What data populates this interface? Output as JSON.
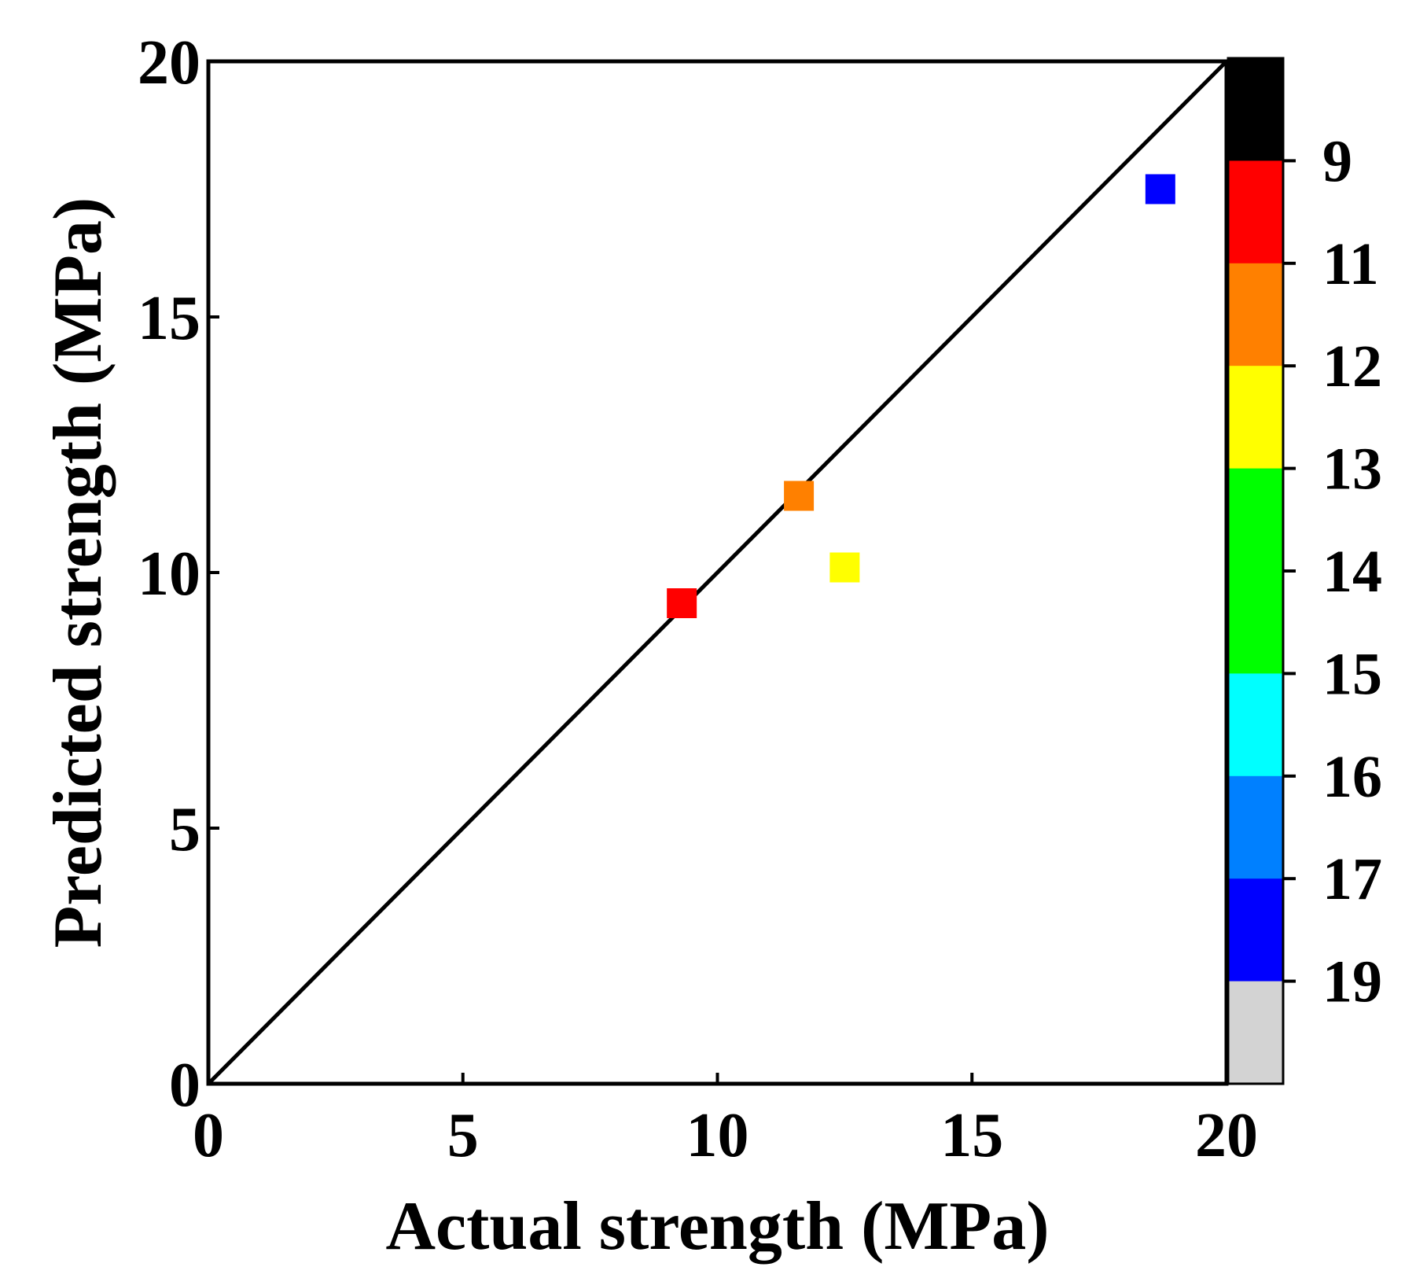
{
  "chart_data": {
    "type": "scatter",
    "title": "",
    "xlabel": "Actual strength (MPa)",
    "ylabel": "Predicted strength (MPa)",
    "xlim": [
      0,
      20
    ],
    "ylim": [
      0,
      20
    ],
    "xticks": [
      0,
      5,
      10,
      15,
      20
    ],
    "yticks": [
      0,
      5,
      10,
      15,
      20
    ],
    "xtick_labels": [
      "0",
      "5",
      "10",
      "15",
      "20"
    ],
    "ytick_labels": [
      "0",
      "5",
      "10",
      "15",
      "20"
    ],
    "reference_line": {
      "from": [
        0,
        0
      ],
      "to": [
        20,
        20
      ],
      "color": "#000000"
    },
    "points": [
      {
        "x": 9.3,
        "y": 9.4,
        "color": "#ff0000"
      },
      {
        "x": 11.6,
        "y": 11.5,
        "color": "#ff8000"
      },
      {
        "x": 12.5,
        "y": 10.1,
        "color": "#ffff00"
      },
      {
        "x": 18.7,
        "y": 17.5,
        "color": "#0000ff"
      }
    ],
    "colorbar": {
      "segments_top_to_bottom": [
        "#000000",
        "#ff0000",
        "#ff8000",
        "#ffff00",
        "#00ff00",
        "#00ff00",
        "#00ffff",
        "#0080ff",
        "#0000ff",
        "#d3d3d3"
      ],
      "labels": [
        "9",
        "11",
        "12",
        "13",
        "14",
        "15",
        "16",
        "17",
        "19"
      ],
      "placement": "right"
    }
  }
}
